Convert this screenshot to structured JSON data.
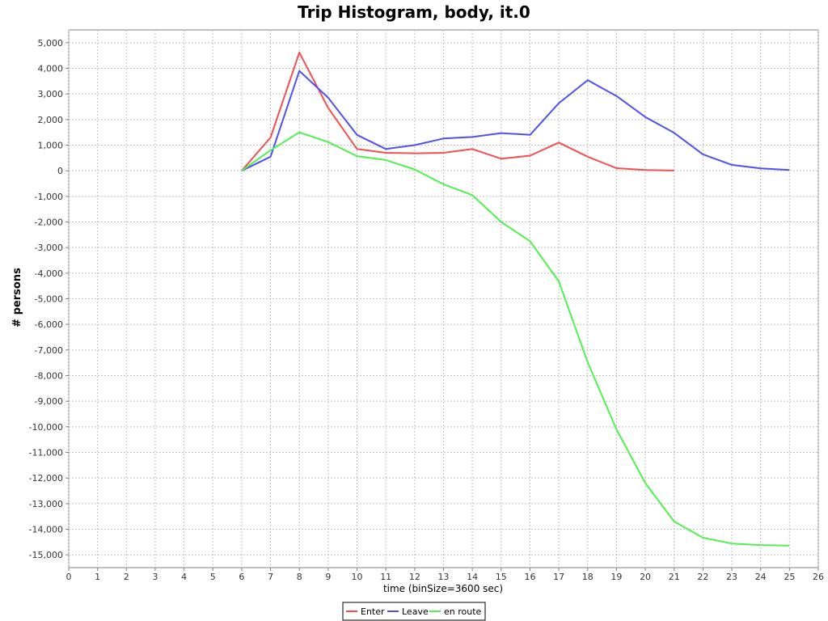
{
  "chart_data": {
    "type": "line",
    "title": "Trip Histogram, body, it.0",
    "xlabel": "time (binSize=3600 sec)",
    "ylabel": "# persons",
    "xlim": [
      0,
      26
    ],
    "ylim": [
      -15500,
      5500
    ],
    "x_ticks": [
      0,
      1,
      2,
      3,
      4,
      5,
      6,
      7,
      8,
      9,
      10,
      11,
      12,
      13,
      14,
      15,
      16,
      17,
      18,
      19,
      20,
      21,
      22,
      23,
      24,
      25,
      26
    ],
    "y_ticks": [
      5000,
      4000,
      3000,
      2000,
      1000,
      0,
      -1000,
      -2000,
      -3000,
      -4000,
      -5000,
      -6000,
      -7000,
      -8000,
      -9000,
      -10000,
      -11000,
      -12000,
      -13000,
      -14000,
      -15000
    ],
    "y_tick_labels": [
      "5,000",
      "4,000",
      "3,000",
      "2,000",
      "1,000",
      "0",
      "-1,000",
      "-2,000",
      "-3,000",
      "-4,000",
      "-5,000",
      "-6,000",
      "-7,000",
      "-8,000",
      "-9,000",
      "-10,000",
      "-11,000",
      "-12,000",
      "-13,000",
      "-14,000",
      "-15,000"
    ],
    "grid": true,
    "legend_position": "bottom-center",
    "series": [
      {
        "name": "Enter",
        "color": "#f05050",
        "x": [
          6,
          7,
          8,
          9,
          10,
          11,
          12,
          13,
          14,
          15,
          16,
          17,
          18,
          19,
          20,
          21
        ],
        "values": [
          0,
          1300,
          4620,
          2450,
          850,
          700,
          680,
          700,
          850,
          470,
          590,
          1100,
          550,
          100,
          30,
          10
        ]
      },
      {
        "name": "Leave",
        "color": "#5050f0",
        "x": [
          6,
          7,
          8,
          9,
          10,
          11,
          12,
          13,
          14,
          15,
          16,
          17,
          18,
          19,
          20,
          21,
          22,
          23,
          24,
          25
        ],
        "values": [
          0,
          550,
          3900,
          2850,
          1400,
          850,
          1000,
          1260,
          1320,
          1470,
          1400,
          2640,
          3540,
          2920,
          2100,
          1480,
          640,
          230,
          90,
          30
        ]
      },
      {
        "name": "en route",
        "color": "#50f050",
        "x": [
          6,
          7,
          8,
          9,
          10,
          11,
          12,
          13,
          14,
          15,
          16,
          17,
          18,
          19,
          20,
          21,
          22,
          23,
          24,
          25
        ],
        "values": [
          0,
          800,
          1500,
          1120,
          570,
          420,
          50,
          -530,
          -950,
          -2000,
          -2750,
          -4320,
          -7480,
          -10100,
          -12200,
          -13700,
          -14330,
          -14560,
          -14620,
          -14640
        ]
      }
    ]
  }
}
